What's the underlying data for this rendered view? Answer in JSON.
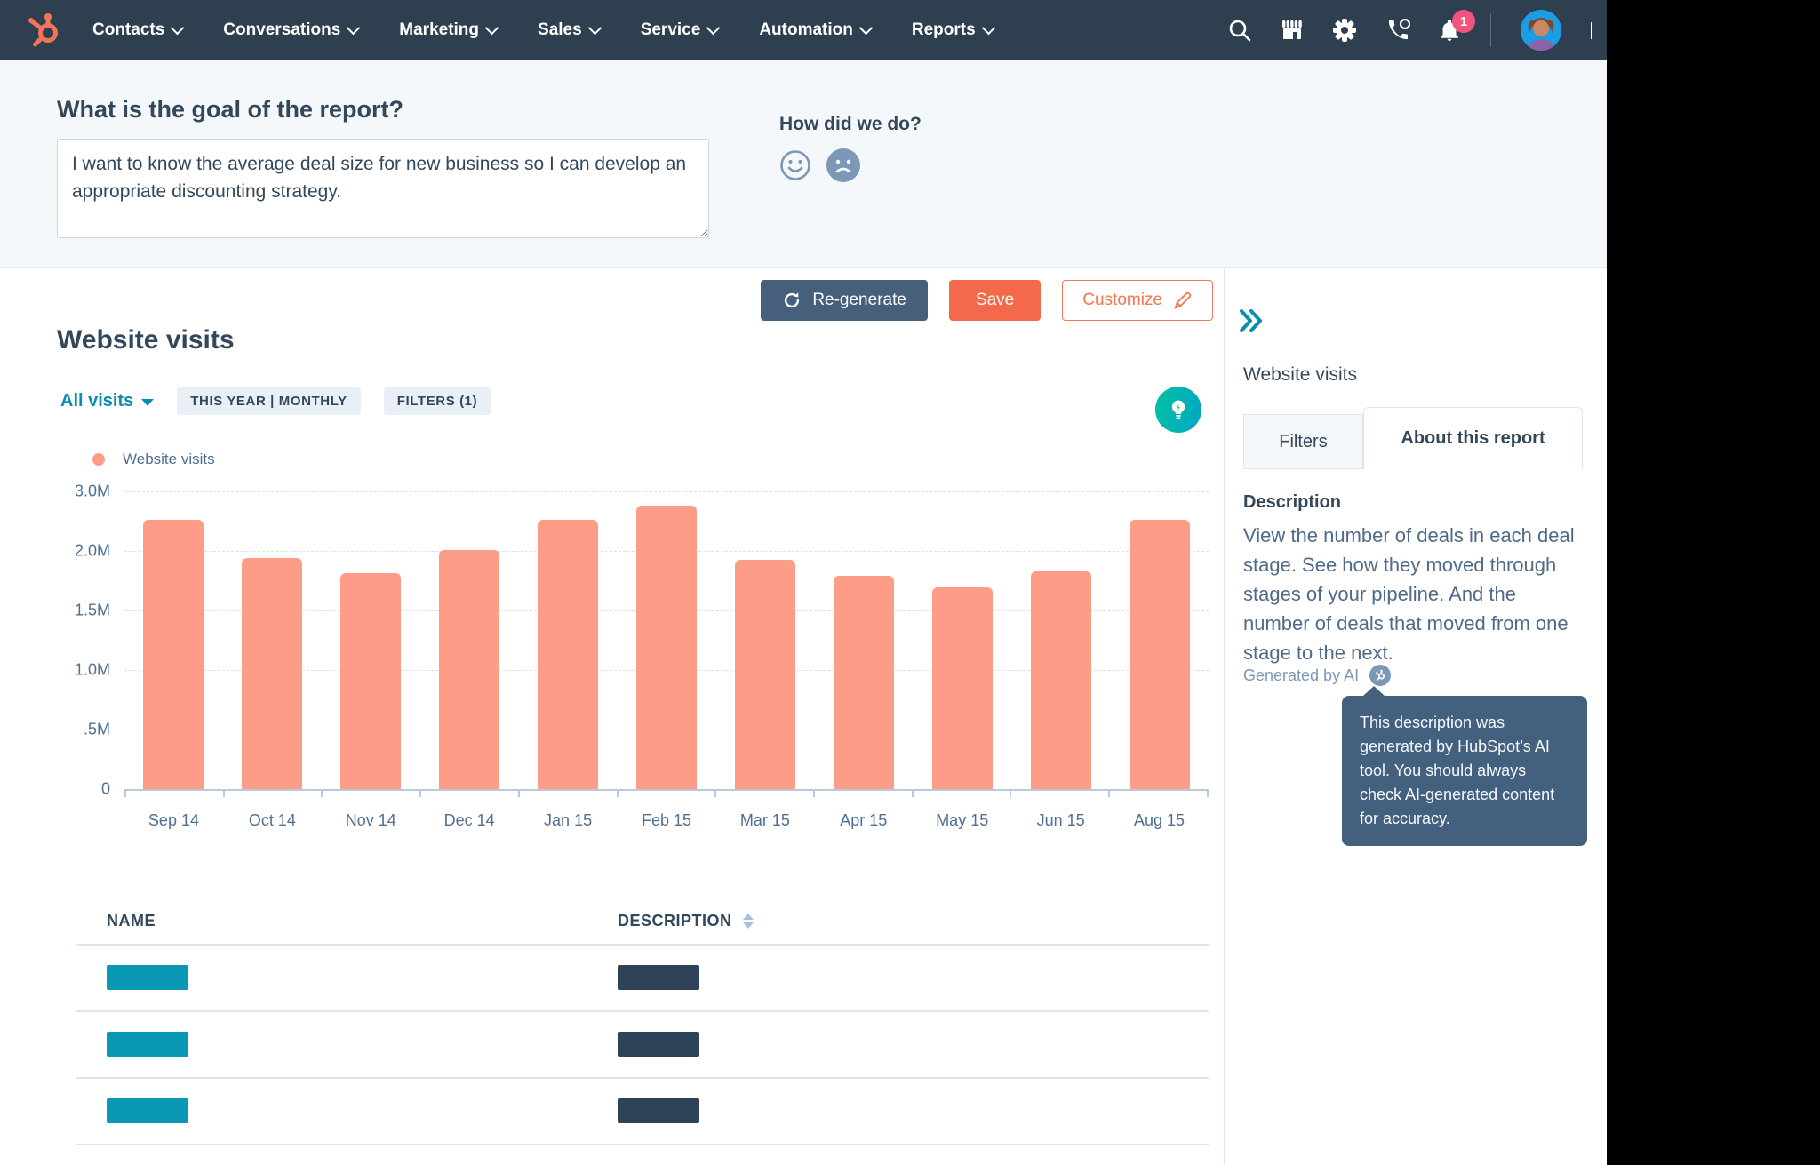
{
  "colors": {
    "navbar_bg": "#2e3f50",
    "accent_orange": "#f4694b",
    "bar_salmon": "#fe9d87",
    "teal": "#0b8db0",
    "navy": "#33475b",
    "badge_pink": "#f2547d",
    "tooltip_bg": "#44607f",
    "section_bg": "#f5f8fa",
    "table_name_bar": "#0999b4",
    "table_desc_bar": "#2f4358"
  },
  "navbar": {
    "brand_icon": "hubspot-sprocket",
    "items": [
      {
        "label": "Contacts"
      },
      {
        "label": "Conversations"
      },
      {
        "label": "Marketing"
      },
      {
        "label": "Sales"
      },
      {
        "label": "Service"
      },
      {
        "label": "Automation"
      },
      {
        "label": "Reports"
      }
    ],
    "icons": [
      "search-icon",
      "marketplace-icon",
      "settings-icon",
      "calls-icon",
      "notifications-icon",
      "user-avatar",
      "account-caret"
    ],
    "notification_count": "1"
  },
  "goal_section": {
    "title": "What is the goal of the report?",
    "textarea_value": "I want to know the average deal size for new business so I can develop an appropriate discounting strategy.",
    "feedback_title": "How did we do?",
    "feedback_icons": [
      "smiley-positive-icon",
      "frowny-negative-icon"
    ]
  },
  "toolbar": {
    "regenerate_label": "Re-generate",
    "save_label": "Save",
    "customize_label": "Customize"
  },
  "report": {
    "title": "Website visits",
    "breakdown_label": "All visits",
    "chips": [
      "THIS YEAR | MONTHLY",
      "FILTERS (1)"
    ],
    "legend_label": "Website visits",
    "insight_icon": "lightbulb-icon"
  },
  "chart_data": {
    "type": "bar",
    "title": "Website visits",
    "categories": [
      "Sep 14",
      "Oct 14",
      "Nov 14",
      "Dec 14",
      "Jan 15",
      "Feb 15",
      "Mar 15",
      "Apr 15",
      "May 15",
      "Jun 15",
      "Aug 15"
    ],
    "series": [
      {
        "name": "Website visits",
        "values": [
          2.71,
          2.33,
          2.18,
          2.41,
          2.71,
          2.86,
          2.31,
          2.15,
          2.03,
          2.19,
          2.71
        ]
      }
    ],
    "value_unit": "millions of visits",
    "ylim": [
      0,
      3
    ],
    "yticks": [
      "3.0M",
      "2.0M",
      "1.5M",
      "1.0M",
      ".5M",
      "0"
    ],
    "xlabel": "",
    "ylabel": "",
    "grid": "dashed horizontal",
    "legend_position": "top-left",
    "bar_color": "#fe9d87"
  },
  "table": {
    "headers": [
      "NAME",
      "DESCRIPTION"
    ],
    "sorted_column": "DESCRIPTION",
    "row_count": 4,
    "rows_note": "redacted placeholder bars"
  },
  "sidebar": {
    "collapse_icon": "double-chevron-right-icon",
    "title": "Website visits",
    "tabs": [
      {
        "label": "Filters",
        "active": false
      },
      {
        "label": "About this report",
        "active": true
      }
    ],
    "description_title": "Description",
    "description_text": "View the number of deals in each deal stage. See how they moved through stages of your pipeline. And the number of deals that moved from one stage to the next.",
    "generated_by": "Generated by AI",
    "ai_badge_icon": "sprocket-ai-icon",
    "tooltip": "This description was generated by HubSpot’s AI tool. You should always check AI-generated content for accuracy."
  }
}
